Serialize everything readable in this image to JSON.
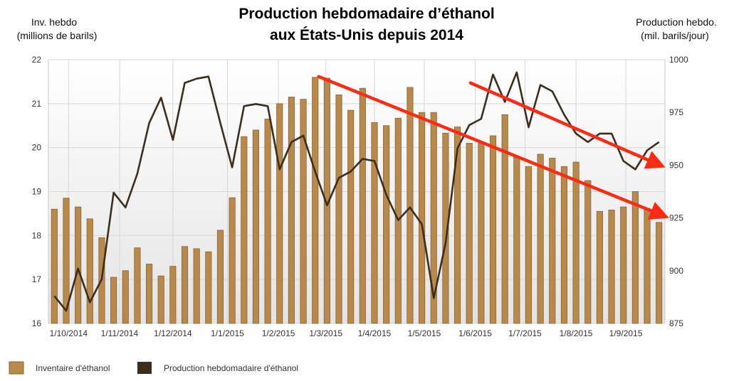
{
  "colors": {
    "bar": "#b8894c",
    "bar_stroke": "#8a6330",
    "line": "#3d2d1c",
    "arrow": "#ff2a14",
    "plot_bg_top": "#ffffff",
    "plot_bg_bottom": "#e4e4e4",
    "grid": "#d6d6d6"
  },
  "chart_data": {
    "type": "bar",
    "title": "Production hebdomadaire d’éthanol",
    "subtitle": "aux États-Unis depuis 2014",
    "left_axis_label": [
      "Inv. hebdo",
      "(millions de barils)"
    ],
    "right_axis_label": [
      "Production hebdo.",
      "(mil. barils/jour)"
    ],
    "x_tick_labels": [
      "1/10/2014",
      "1/11/2014",
      "1/12/2014",
      "1/1/2015",
      "1/2/2015",
      "1/3/2015",
      "1/4/2015",
      "1/5/2015",
      "1/6/2015",
      "1/7/2015",
      "1/8/2015",
      "1/9/2015"
    ],
    "x_tick_week_index": [
      1.7,
      6.0,
      10.5,
      15.1,
      19.4,
      23.4,
      27.5,
      31.7,
      36.0,
      40.2,
      44.5,
      48.7
    ],
    "left_ylim": [
      16,
      22
    ],
    "left_yticks": [
      16,
      17,
      18,
      19,
      20,
      21,
      22
    ],
    "right_ylim": [
      875,
      1000
    ],
    "right_yticks": [
      875,
      900,
      925,
      950,
      975,
      1000
    ],
    "grid": true,
    "series": [
      {
        "name": "Inventaire d'éthanol",
        "kind": "bar",
        "axis": "left",
        "values": [
          18.6,
          18.85,
          18.65,
          18.38,
          17.95,
          17.05,
          17.2,
          17.72,
          17.35,
          17.08,
          17.3,
          17.75,
          17.7,
          17.63,
          18.12,
          18.86,
          20.25,
          20.4,
          20.65,
          21.0,
          21.15,
          21.1,
          21.6,
          21.58,
          21.2,
          20.85,
          21.35,
          20.57,
          20.5,
          20.67,
          21.37,
          20.8,
          20.8,
          20.33,
          20.47,
          20.1,
          20.1,
          20.27,
          20.75,
          19.8,
          19.57,
          19.85,
          19.76,
          19.57,
          19.67,
          19.25,
          18.55,
          18.58,
          18.65,
          19.0,
          18.62,
          18.3
        ]
      },
      {
        "name": "Production hebdomadaire d'éthanol",
        "kind": "line",
        "axis": "right",
        "values": [
          888,
          881,
          901,
          885,
          896,
          937,
          930,
          946,
          970,
          982,
          962,
          989,
          991,
          992,
          970,
          949,
          978,
          979,
          978,
          948,
          961,
          964,
          947,
          931,
          944,
          947,
          953,
          952,
          936,
          924,
          930,
          922,
          887,
          913,
          958,
          969,
          972,
          993,
          980,
          994,
          968,
          988,
          985,
          974,
          965,
          961,
          965,
          965,
          952,
          948,
          957,
          961
        ]
      }
    ],
    "annotations": [
      {
        "type": "arrow",
        "from": {
          "week": 22.8,
          "right_value": 992
        },
        "to": {
          "week": 51.9,
          "right_value": 926
        }
      },
      {
        "type": "arrow",
        "from": {
          "week": 35.6,
          "right_value": 989
        },
        "to": {
          "week": 51.6,
          "right_value": 950
        }
      }
    ],
    "legend": [
      {
        "label": "Inventaire d'éthanol",
        "swatch": "bar"
      },
      {
        "label": "Production hebdomadaire d'éthanol",
        "swatch": "line"
      }
    ],
    "legend_position": "bottom-left"
  }
}
